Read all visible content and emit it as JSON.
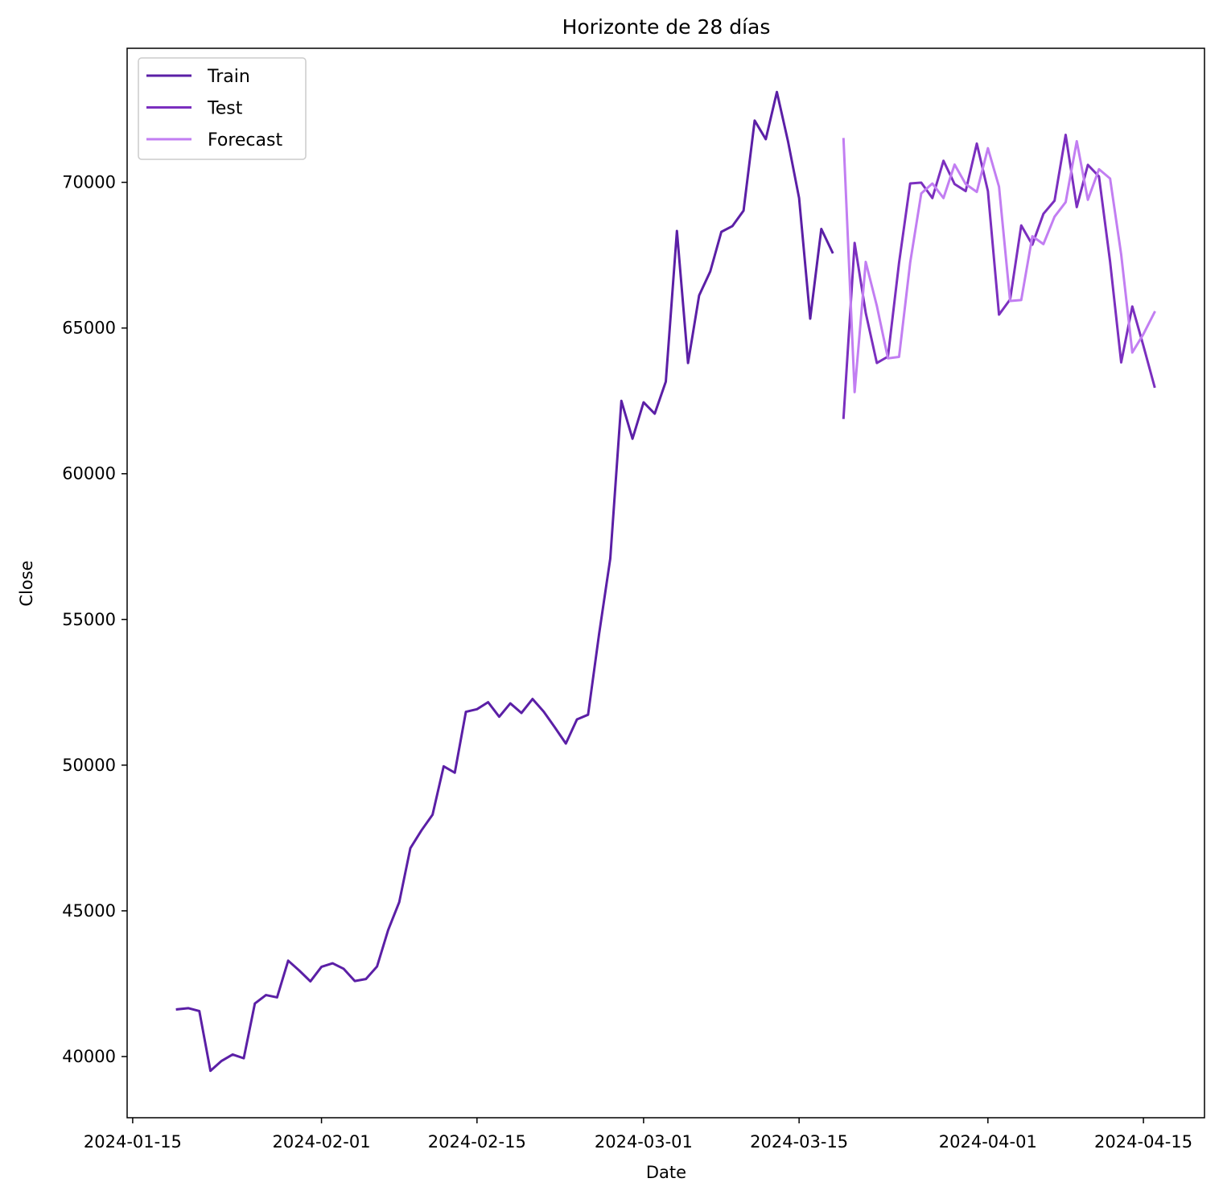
{
  "chart_data": {
    "type": "line",
    "title": "Horizonte de 28 días",
    "xlabel": "Date",
    "ylabel": "Close",
    "xlim": [
      "2024-01-14T12:00",
      "2024-04-20T12:00"
    ],
    "ylim": [
      37900,
      74600
    ],
    "x_ticks": [
      "2024-01-15",
      "2024-02-01",
      "2024-02-15",
      "2024-03-01",
      "2024-03-15",
      "2024-04-01",
      "2024-04-15"
    ],
    "y_ticks": [
      40000,
      45000,
      50000,
      55000,
      60000,
      65000,
      70000
    ],
    "grid": false,
    "legend_position": "upper-left",
    "series": [
      {
        "name": "Train",
        "color": "#5b1fa6",
        "start_date": "2024-01-19",
        "values": [
          41620,
          41660,
          41560,
          39510,
          39850,
          40070,
          39940,
          41820,
          42110,
          42030,
          43290,
          42950,
          42580,
          43080,
          43200,
          43010,
          42590,
          42660,
          43090,
          44340,
          45300,
          47150,
          47760,
          48300,
          49960,
          49740,
          51830,
          51920,
          52160,
          51660,
          52120,
          51790,
          52270,
          51840,
          51300,
          50740,
          51570,
          51730,
          54520,
          57090,
          62500,
          61200,
          62450,
          62060,
          63160,
          68330,
          63800,
          66120,
          66940,
          68300,
          68500,
          69030,
          72120,
          71480,
          73100,
          71410,
          69460,
          65320,
          68400,
          67600
        ]
      },
      {
        "name": "Test",
        "color": "#7b2fbf",
        "start_date": "2024-03-19",
        "values": [
          61920,
          67920,
          65520,
          63800,
          64020,
          67240,
          69960,
          69990,
          69460,
          70740,
          69940,
          69700,
          71330,
          69700,
          65460,
          65980,
          68520,
          67860,
          68920,
          69370,
          71630,
          69150,
          70600,
          70200,
          67280,
          63820,
          65740,
          64390,
          62990
        ]
      },
      {
        "name": "Forecast",
        "color": "#c27ef2",
        "start_date": "2024-03-19",
        "values": [
          71480,
          62800,
          67270,
          65760,
          63960,
          64010,
          67240,
          69620,
          69960,
          69460,
          70610,
          69940,
          69670,
          71170,
          69850,
          65930,
          65960,
          68150,
          67880,
          68820,
          69320,
          71410,
          69400,
          70450,
          70130,
          67520,
          64160,
          64790,
          65540
        ]
      }
    ]
  }
}
